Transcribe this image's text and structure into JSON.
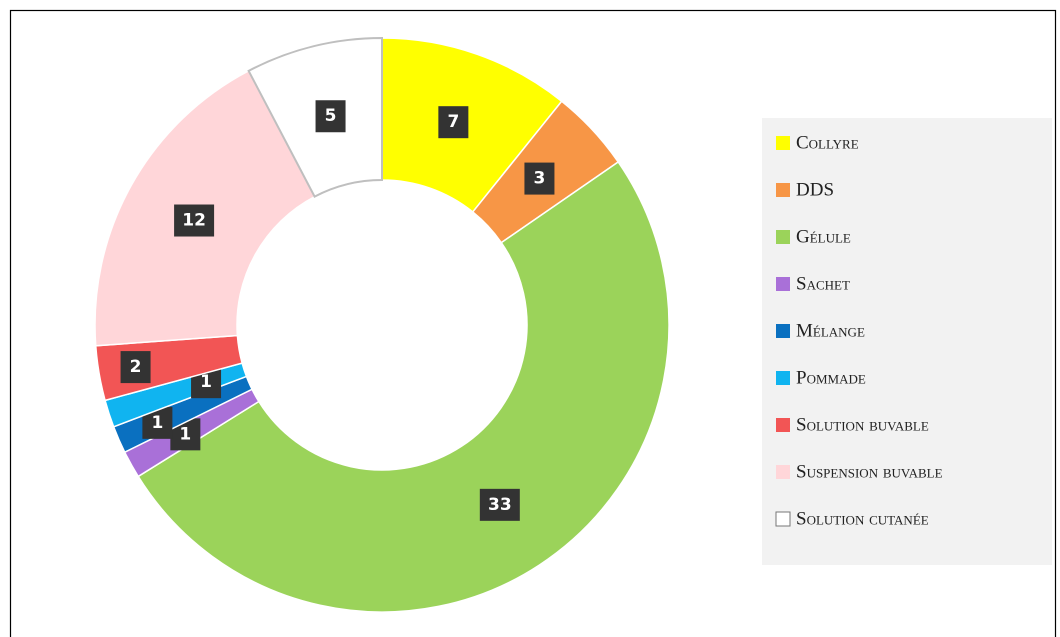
{
  "chart_data": {
    "type": "donut",
    "categories": [
      "Collyre",
      "DDS",
      "Gélule",
      "Sachet",
      "Mélange",
      "Pommade",
      "Solution buvable",
      "Suspension buvable",
      "Solution cutanée"
    ],
    "values": [
      7,
      3,
      33,
      1,
      1,
      1,
      2,
      12,
      5
    ],
    "colors": [
      "#ffff00",
      "#f79646",
      "#9bd35a",
      "#a970d8",
      "#0a70c0",
      "#10b4f0",
      "#f25555",
      "#ffd6d9",
      "#ffffff"
    ],
    "legend": "right"
  }
}
